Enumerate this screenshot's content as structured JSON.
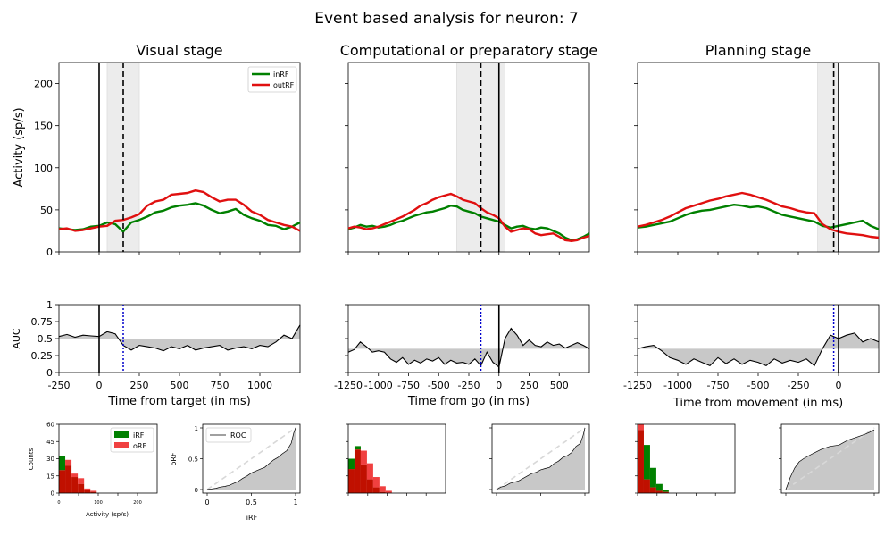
{
  "figure": {
    "suptitle": "Event based analysis for neuron: 7"
  },
  "colors": {
    "inRF": "#008000",
    "outRF": "#e01010",
    "auc_line": "#000000",
    "auc_fill": "#c8c8c8",
    "window_shade": "#ececec",
    "event_line": "#000000",
    "event_dashed": "#000000",
    "auc_marker": "#0000cc",
    "hist_in": "#008000",
    "hist_out": "#f04040",
    "hist_overlap": "#c01000",
    "roc_chance": "#d8d8d8"
  },
  "chart_data": [
    {
      "type": "line",
      "panel": "visual-activity",
      "title": "Visual stage",
      "ylabel": "Activity (sp/s)",
      "xlim": [
        -250,
        1250
      ],
      "ylim": [
        0,
        225
      ],
      "yticks": [
        0,
        50,
        100,
        150,
        200
      ],
      "event_line": 0,
      "dashed_line": 150,
      "shade": [
        50,
        250
      ],
      "legend": [
        "inRF",
        "outRF"
      ],
      "x": [
        -250,
        -200,
        -150,
        -100,
        -50,
        0,
        50,
        100,
        150,
        200,
        250,
        300,
        350,
        400,
        450,
        500,
        550,
        600,
        650,
        700,
        750,
        800,
        850,
        900,
        950,
        1000,
        1050,
        1100,
        1150,
        1200,
        1250
      ],
      "series": [
        {
          "name": "inRF",
          "values": [
            28,
            27,
            26,
            27,
            30,
            31,
            35,
            33,
            24,
            35,
            38,
            42,
            47,
            49,
            53,
            55,
            56,
            58,
            55,
            50,
            46,
            48,
            51,
            44,
            40,
            37,
            32,
            31,
            27,
            30,
            35
          ]
        },
        {
          "name": "outRF",
          "values": [
            27,
            28,
            25,
            26,
            28,
            30,
            31,
            37,
            38,
            41,
            45,
            55,
            60,
            62,
            68,
            69,
            70,
            73,
            71,
            65,
            60,
            62,
            62,
            56,
            48,
            44,
            38,
            35,
            32,
            30,
            25
          ]
        }
      ]
    },
    {
      "type": "line",
      "panel": "computational-activity",
      "title": "Computational or preparatory stage",
      "xlim": [
        -1250,
        750
      ],
      "ylim": [
        0,
        225
      ],
      "event_line": 0,
      "dashed_line": -150,
      "shade": [
        -350,
        50
      ],
      "x": [
        -1250,
        -1200,
        -1150,
        -1100,
        -1050,
        -1000,
        -950,
        -900,
        -850,
        -800,
        -750,
        -700,
        -650,
        -600,
        -550,
        -500,
        -450,
        -400,
        -350,
        -300,
        -250,
        -200,
        -150,
        -100,
        -50,
        0,
        50,
        100,
        150,
        200,
        250,
        300,
        350,
        400,
        450,
        500,
        550,
        600,
        650,
        700,
        750
      ],
      "series": [
        {
          "name": "inRF",
          "values": [
            27,
            29,
            32,
            30,
            31,
            29,
            30,
            32,
            35,
            37,
            40,
            43,
            45,
            47,
            48,
            50,
            52,
            55,
            54,
            50,
            48,
            46,
            42,
            40,
            38,
            36,
            32,
            28,
            30,
            31,
            28,
            27,
            29,
            28,
            25,
            22,
            17,
            14,
            15,
            18,
            22
          ]
        },
        {
          "name": "outRF",
          "values": [
            28,
            30,
            29,
            27,
            28,
            30,
            33,
            36,
            39,
            42,
            46,
            50,
            55,
            58,
            62,
            65,
            67,
            69,
            66,
            62,
            60,
            58,
            52,
            47,
            44,
            40,
            30,
            24,
            26,
            28,
            27,
            22,
            20,
            21,
            22,
            18,
            14,
            13,
            14,
            17,
            19
          ]
        }
      ]
    },
    {
      "type": "line",
      "panel": "planning-activity",
      "title": "Planning stage",
      "xlim": [
        -1250,
        250
      ],
      "ylim": [
        0,
        225
      ],
      "event_line": 0,
      "dashed_line": -30,
      "shade": [
        -130,
        0
      ],
      "x": [
        -1250,
        -1200,
        -1150,
        -1100,
        -1050,
        -1000,
        -950,
        -900,
        -850,
        -800,
        -750,
        -700,
        -650,
        -600,
        -550,
        -500,
        -450,
        -400,
        -350,
        -300,
        -250,
        -200,
        -150,
        -100,
        -50,
        0,
        50,
        100,
        150,
        200,
        250
      ],
      "series": [
        {
          "name": "inRF",
          "values": [
            29,
            30,
            32,
            34,
            36,
            40,
            44,
            47,
            49,
            50,
            52,
            54,
            56,
            55,
            53,
            54,
            52,
            48,
            44,
            42,
            40,
            38,
            36,
            31,
            29,
            31,
            33,
            35,
            37,
            31,
            27
          ]
        },
        {
          "name": "outRF",
          "values": [
            30,
            32,
            35,
            38,
            42,
            47,
            52,
            55,
            58,
            61,
            63,
            66,
            68,
            70,
            68,
            65,
            62,
            58,
            54,
            52,
            49,
            47,
            46,
            33,
            27,
            24,
            22,
            21,
            20,
            18,
            17
          ]
        }
      ]
    },
    {
      "type": "area",
      "panel": "visual-auc",
      "ylabel": "AUC",
      "xlabel": "Time from target (in ms)",
      "xlim": [
        -250,
        1250
      ],
      "ylim": [
        0,
        1
      ],
      "yticks": [
        "0",
        "0.25",
        "0.5",
        "0.75",
        "1"
      ],
      "xticks": [
        "-250",
        "0",
        "250",
        "500",
        "750",
        "1000"
      ],
      "xtick_values": [
        -250,
        0,
        250,
        500,
        750,
        1000
      ],
      "event_line": 0,
      "dotted_line": 150,
      "baseline": 0.5,
      "x": [
        -250,
        -200,
        -150,
        -100,
        -50,
        0,
        50,
        100,
        150,
        200,
        250,
        300,
        350,
        400,
        450,
        500,
        550,
        600,
        650,
        700,
        750,
        800,
        850,
        900,
        950,
        1000,
        1050,
        1100,
        1150,
        1200,
        1250
      ],
      "values": [
        0.53,
        0.56,
        0.52,
        0.55,
        0.54,
        0.53,
        0.6,
        0.57,
        0.4,
        0.33,
        0.4,
        0.38,
        0.36,
        0.32,
        0.38,
        0.35,
        0.4,
        0.33,
        0.36,
        0.38,
        0.4,
        0.33,
        0.36,
        0.38,
        0.35,
        0.4,
        0.38,
        0.45,
        0.55,
        0.5,
        0.7
      ]
    },
    {
      "type": "area",
      "panel": "computational-auc",
      "xlabel": "Time from go (in ms)",
      "xlim": [
        -1250,
        750
      ],
      "ylim": [
        0,
        1
      ],
      "xticks": [
        "-1250",
        "-1000",
        "-750",
        "-500",
        "-250",
        "0",
        "250",
        "500"
      ],
      "xtick_values": [
        -1250,
        -1000,
        -750,
        -500,
        -250,
        0,
        250,
        500
      ],
      "event_line": 0,
      "dotted_line": -150,
      "baseline": 0.35,
      "x": [
        -1250,
        -1200,
        -1150,
        -1100,
        -1050,
        -1000,
        -950,
        -900,
        -850,
        -800,
        -750,
        -700,
        -650,
        -600,
        -550,
        -500,
        -450,
        -400,
        -350,
        -300,
        -250,
        -200,
        -150,
        -100,
        -50,
        0,
        50,
        100,
        150,
        200,
        250,
        300,
        350,
        400,
        450,
        500,
        550,
        600,
        650,
        700,
        750
      ],
      "values": [
        0.3,
        0.34,
        0.45,
        0.38,
        0.3,
        0.32,
        0.3,
        0.2,
        0.15,
        0.22,
        0.12,
        0.18,
        0.14,
        0.2,
        0.17,
        0.22,
        0.12,
        0.18,
        0.14,
        0.15,
        0.12,
        0.2,
        0.1,
        0.3,
        0.15,
        0.08,
        0.5,
        0.65,
        0.55,
        0.4,
        0.48,
        0.4,
        0.38,
        0.45,
        0.4,
        0.42,
        0.36,
        0.4,
        0.44,
        0.4,
        0.35
      ]
    },
    {
      "type": "area",
      "panel": "planning-auc",
      "xlabel": "Time from movement (in ms)",
      "xlim": [
        -1250,
        250
      ],
      "ylim": [
        0,
        1
      ],
      "xticks": [
        "-1250",
        "-1000",
        "-750",
        "-500",
        "-250",
        "0"
      ],
      "xtick_values": [
        -1250,
        -1000,
        -750,
        -500,
        -250,
        0
      ],
      "event_line": 0,
      "dotted_line": -30,
      "baseline": 0.35,
      "x": [
        -1250,
        -1200,
        -1150,
        -1100,
        -1050,
        -1000,
        -950,
        -900,
        -850,
        -800,
        -750,
        -700,
        -650,
        -600,
        -550,
        -500,
        -450,
        -400,
        -350,
        -300,
        -250,
        -200,
        -150,
        -100,
        -50,
        0,
        50,
        100,
        150,
        200,
        250
      ],
      "values": [
        0.35,
        0.38,
        0.4,
        0.32,
        0.22,
        0.18,
        0.12,
        0.2,
        0.15,
        0.1,
        0.22,
        0.13,
        0.2,
        0.12,
        0.18,
        0.15,
        0.1,
        0.2,
        0.14,
        0.18,
        0.15,
        0.2,
        0.1,
        0.35,
        0.55,
        0.5,
        0.55,
        0.58,
        0.45,
        0.5,
        0.45
      ]
    },
    {
      "type": "bar",
      "panel": "visual-hist",
      "ylabel": "Counts",
      "xlabel": "Activity (sp/s)",
      "xlim": [
        0,
        250
      ],
      "ylim": [
        0,
        60
      ],
      "yticks": [
        "0",
        "15",
        "30",
        "45",
        "60"
      ],
      "xticks": [
        "0",
        "100",
        "200"
      ],
      "xtick_values": [
        0,
        100,
        200
      ],
      "bin_edges": [
        0,
        16,
        32,
        48,
        64,
        80,
        96,
        112,
        128
      ],
      "legend": [
        "iRF",
        "oRF"
      ],
      "series": [
        {
          "name": "iRF",
          "values": [
            32,
            24,
            14,
            8,
            3,
            1,
            0,
            0
          ]
        },
        {
          "name": "oRF",
          "values": [
            20,
            29,
            17,
            13,
            4,
            2,
            0,
            0
          ]
        }
      ]
    },
    {
      "type": "area",
      "panel": "visual-roc",
      "xlabel": "iRF",
      "ylabel": "oRF",
      "xlim": [
        0,
        1
      ],
      "ylim": [
        0,
        1
      ],
      "xticks": [
        "0",
        "0.5",
        "1"
      ],
      "yticks": [
        "0",
        "0.5",
        "1"
      ],
      "tick_values": [
        0,
        0.5,
        1
      ],
      "legend": [
        "ROC"
      ],
      "x": [
        0,
        0.05,
        0.1,
        0.15,
        0.2,
        0.25,
        0.3,
        0.35,
        0.4,
        0.45,
        0.5,
        0.55,
        0.6,
        0.65,
        0.7,
        0.75,
        0.8,
        0.85,
        0.9,
        0.95,
        0.98,
        1.0
      ],
      "values": [
        0,
        0.01,
        0.02,
        0.04,
        0.05,
        0.07,
        0.1,
        0.13,
        0.18,
        0.22,
        0.27,
        0.3,
        0.33,
        0.36,
        0.42,
        0.48,
        0.52,
        0.58,
        0.63,
        0.75,
        0.92,
        1.0
      ]
    },
    {
      "type": "bar",
      "panel": "computational-hist",
      "xlim": [
        0,
        250
      ],
      "ylim": [
        0,
        60
      ],
      "bin_edges": [
        0,
        16,
        32,
        48,
        64,
        80,
        96,
        112,
        128
      ],
      "series": [
        {
          "name": "iRF",
          "values": [
            30,
            41,
            25,
            12,
            5,
            1,
            0,
            0
          ]
        },
        {
          "name": "oRF",
          "values": [
            21,
            38,
            37,
            26,
            14,
            6,
            2,
            0
          ]
        }
      ]
    },
    {
      "type": "area",
      "panel": "computational-roc",
      "xlim": [
        0,
        1
      ],
      "ylim": [
        0,
        1
      ],
      "x": [
        0,
        0.05,
        0.1,
        0.15,
        0.2,
        0.25,
        0.3,
        0.35,
        0.4,
        0.45,
        0.5,
        0.55,
        0.6,
        0.65,
        0.7,
        0.75,
        0.8,
        0.85,
        0.9,
        0.95,
        0.98,
        1.0
      ],
      "values": [
        0,
        0.04,
        0.06,
        0.1,
        0.12,
        0.14,
        0.18,
        0.22,
        0.26,
        0.28,
        0.32,
        0.34,
        0.36,
        0.42,
        0.46,
        0.52,
        0.55,
        0.6,
        0.7,
        0.75,
        0.88,
        1.0
      ]
    },
    {
      "type": "bar",
      "panel": "planning-hist",
      "xlim": [
        0,
        250
      ],
      "ylim": [
        0,
        60
      ],
      "bin_edges": [
        0,
        16,
        32,
        48,
        64,
        80,
        96,
        112,
        128
      ],
      "series": [
        {
          "name": "iRF",
          "values": [
            55,
            42,
            22,
            8,
            3,
            0,
            0,
            0
          ]
        },
        {
          "name": "oRF",
          "values": [
            60,
            12,
            5,
            2,
            1,
            0,
            0,
            0
          ]
        }
      ]
    },
    {
      "type": "area",
      "panel": "planning-roc",
      "xlim": [
        0,
        1
      ],
      "ylim": [
        0,
        1
      ],
      "x": [
        0,
        0.05,
        0.1,
        0.15,
        0.2,
        0.3,
        0.4,
        0.5,
        0.6,
        0.7,
        0.8,
        0.9,
        0.95,
        1.0
      ],
      "values": [
        0,
        0.2,
        0.35,
        0.45,
        0.5,
        0.58,
        0.65,
        0.7,
        0.72,
        0.8,
        0.85,
        0.9,
        0.93,
        0.97
      ]
    }
  ]
}
